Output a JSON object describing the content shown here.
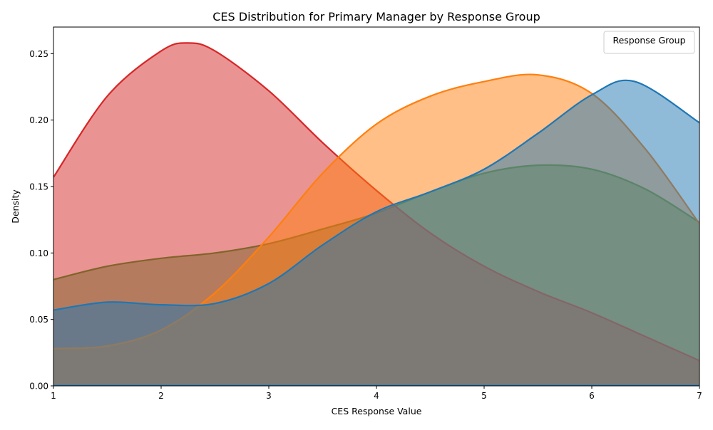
{
  "chart_data": {
    "type": "area",
    "title": "CES Distribution for Primary Manager by Response Group",
    "xlabel": "CES Response Value",
    "ylabel": "Density",
    "xlim": [
      1,
      7
    ],
    "ylim": [
      0,
      0.27
    ],
    "xticks": [
      1,
      2,
      3,
      4,
      5,
      6,
      7
    ],
    "xtick_labels": [
      "1",
      "2",
      "3",
      "4",
      "5",
      "6",
      "7"
    ],
    "yticks": [
      0,
      0.05,
      0.1,
      0.15,
      0.2,
      0.25
    ],
    "ytick_labels": [
      "0.00",
      "0.05",
      "0.10",
      "0.15",
      "0.20",
      "0.25"
    ],
    "grid": false,
    "legend": {
      "title": "Response Group",
      "placement": "top-right",
      "entries": []
    },
    "series": [
      {
        "color": "#2ca02c",
        "x": [
          1.0,
          1.5,
          2.0,
          2.5,
          3.0,
          3.5,
          4.0,
          4.5,
          5.0,
          5.5,
          6.0,
          6.5,
          7.0
        ],
        "y": [
          0.08,
          0.09,
          0.096,
          0.1,
          0.107,
          0.118,
          0.13,
          0.146,
          0.16,
          0.166,
          0.163,
          0.148,
          0.123
        ]
      },
      {
        "color": "#d62728",
        "x": [
          1.0,
          1.5,
          2.0,
          2.25,
          2.5,
          3.0,
          3.5,
          4.0,
          4.5,
          5.0,
          5.5,
          6.0,
          6.5,
          7.0
        ],
        "y": [
          0.157,
          0.218,
          0.252,
          0.258,
          0.252,
          0.222,
          0.183,
          0.147,
          0.115,
          0.09,
          0.071,
          0.055,
          0.037,
          0.019
        ]
      },
      {
        "color": "#ff7f0e",
        "x": [
          1.0,
          1.5,
          2.0,
          2.5,
          3.0,
          3.5,
          4.0,
          4.5,
          5.0,
          5.5,
          6.0,
          6.5,
          7.0
        ],
        "y": [
          0.028,
          0.03,
          0.042,
          0.07,
          0.112,
          0.16,
          0.197,
          0.218,
          0.229,
          0.234,
          0.22,
          0.178,
          0.122
        ]
      },
      {
        "color": "#1f77b4",
        "x": [
          1.0,
          1.5,
          2.0,
          2.5,
          3.0,
          3.5,
          4.0,
          4.5,
          5.0,
          5.5,
          6.0,
          6.4,
          7.0
        ],
        "y": [
          0.057,
          0.063,
          0.061,
          0.062,
          0.077,
          0.106,
          0.131,
          0.146,
          0.163,
          0.19,
          0.219,
          0.229,
          0.198
        ]
      }
    ]
  }
}
